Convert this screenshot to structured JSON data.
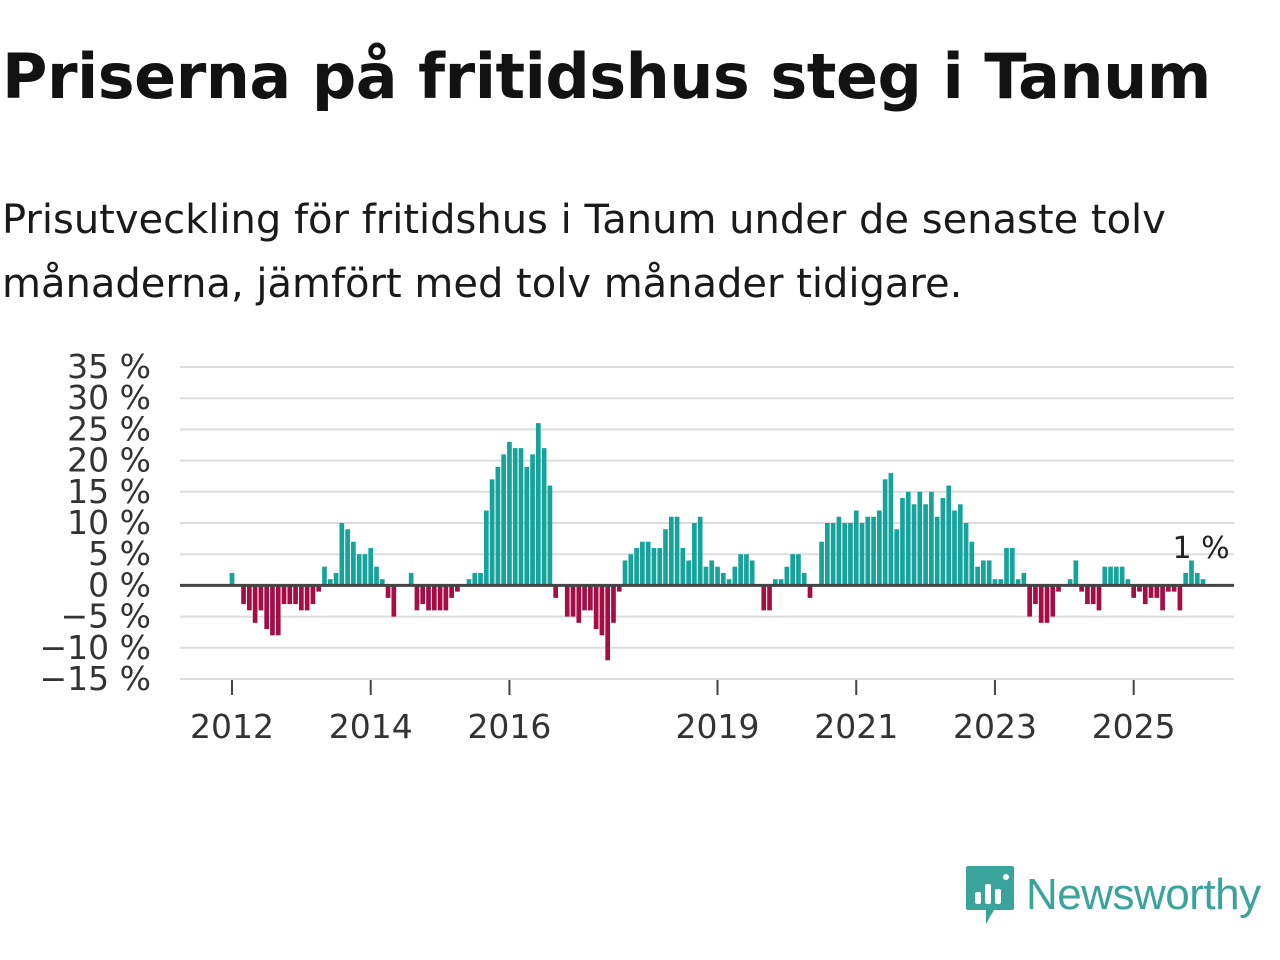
{
  "header": {
    "title": "Priserna på fritidshus steg i Tanum",
    "subtitle": "Prisutveckling för fritidshus i Tanum under de senaste tolv månaderna, jämfört med tolv månader tidigare."
  },
  "brand": {
    "name": "Newsworthy"
  },
  "colors": {
    "positive": "#16a39b",
    "negative": "#a50d45",
    "grid": "#dddddd",
    "zero": "#444444",
    "text": "#333333"
  },
  "chart_data": {
    "type": "bar",
    "title": "Priserna på fritidshus steg i Tanum",
    "ylabel": "",
    "xlabel": "",
    "ylim": [
      -15,
      35
    ],
    "yticks": [
      35,
      30,
      25,
      20,
      15,
      10,
      5,
      0,
      -5,
      -10,
      -15
    ],
    "ytick_labels": [
      "35 %",
      "30 %",
      "25 %",
      "20 %",
      "15 %",
      "10 %",
      "5 %",
      "0 %",
      "−5 %",
      "−10 %",
      "−15 %"
    ],
    "xticks": [
      {
        "label": "2012",
        "index": 0
      },
      {
        "label": "2014",
        "index": 24
      },
      {
        "label": "2016",
        "index": 48
      },
      {
        "label": "2019",
        "index": 84
      },
      {
        "label": "2021",
        "index": 108
      },
      {
        "label": "2023",
        "index": 132
      },
      {
        "label": "2025",
        "index": 156
      }
    ],
    "start": "2012-01",
    "values": [
      2,
      0,
      -3,
      -4,
      -6,
      -4,
      -7,
      -8,
      -8,
      -3,
      -3,
      -3,
      -4,
      -4,
      -3,
      -1,
      3,
      1,
      2,
      10,
      9,
      7,
      5,
      5,
      6,
      3,
      1,
      -2,
      -5,
      0,
      0,
      2,
      -4,
      -3,
      -4,
      -4,
      -4,
      -4,
      -2,
      -1,
      0,
      1,
      2,
      2,
      12,
      17,
      19,
      21,
      23,
      22,
      22,
      19,
      21,
      26,
      22,
      16,
      -2,
      0,
      -5,
      -5,
      -6,
      -4,
      -4,
      -7,
      -8,
      -12,
      -6,
      -1,
      4,
      5,
      6,
      7,
      7,
      6,
      6,
      9,
      11,
      11,
      6,
      4,
      10,
      11,
      3,
      4,
      3,
      2,
      1,
      3,
      5,
      5,
      4,
      0,
      -4,
      -4,
      1,
      1,
      3,
      5,
      5,
      2,
      -2,
      0,
      7,
      10,
      10,
      11,
      10,
      10,
      12,
      10,
      11,
      11,
      12,
      17,
      18,
      9,
      14,
      15,
      13,
      15,
      13,
      15,
      11,
      14,
      16,
      12,
      13,
      10,
      7,
      3,
      4,
      4,
      1,
      1,
      6,
      6,
      1,
      2,
      -5,
      -3,
      -6,
      -6,
      -5,
      -1,
      0,
      1,
      4,
      -1,
      -3,
      -3,
      -4,
      3,
      3,
      3,
      3,
      1,
      -2,
      -1,
      -3,
      -2,
      -2,
      -4,
      -1,
      -1,
      -4,
      2,
      4,
      2,
      1
    ],
    "annotation": "1 %"
  }
}
